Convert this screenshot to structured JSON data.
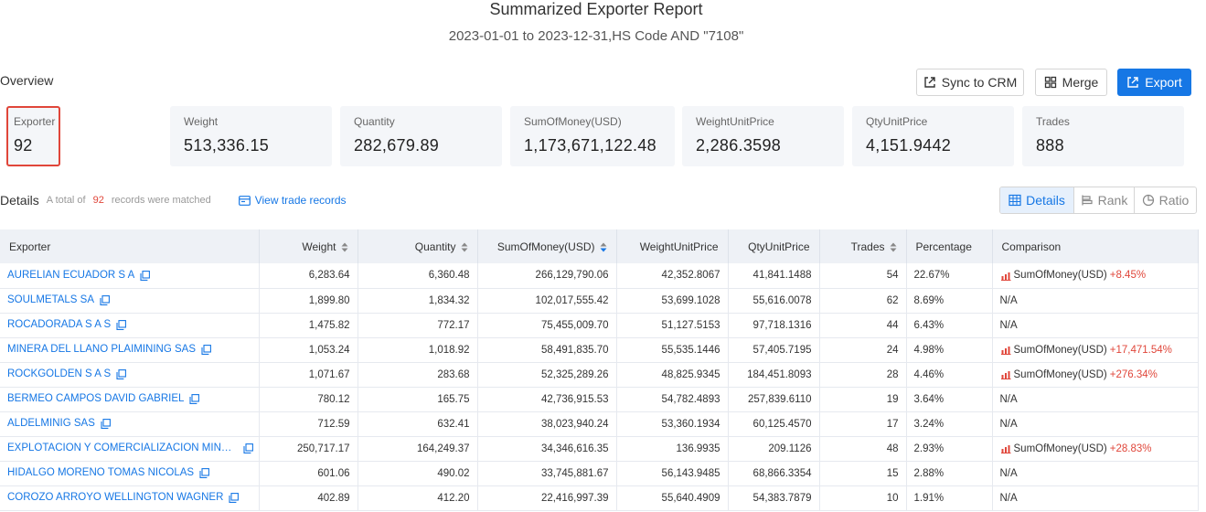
{
  "header": {
    "title": "Summarized Exporter Report",
    "subtitle": "2023-01-01 to 2023-12-31,HS Code AND \"7108\""
  },
  "overview": {
    "label": "Overview",
    "buttons": {
      "sync": "Sync to CRM",
      "merge": "Merge",
      "export": "Export"
    },
    "stats": [
      {
        "label": "Exporter",
        "value": "92"
      },
      {
        "label": "Weight",
        "value": "513,336.15"
      },
      {
        "label": "Quantity",
        "value": "282,679.89"
      },
      {
        "label": "SumOfMoney(USD)",
        "value": "1,173,671,122.48"
      },
      {
        "label": "WeightUnitPrice",
        "value": "2,286.3598"
      },
      {
        "label": "QtyUnitPrice",
        "value": "4,151.9442"
      },
      {
        "label": "Trades",
        "value": "888"
      }
    ]
  },
  "details": {
    "title": "Details",
    "note_prefix": "A total of",
    "count": "92",
    "note_suffix": "records were matched",
    "trade_link": "View trade records",
    "views": [
      "Details",
      "Rank",
      "Ratio"
    ],
    "active_view": "Details"
  },
  "table": {
    "columns": [
      "Exporter",
      "Weight",
      "Quantity",
      "SumOfMoney(USD)",
      "WeightUnitPrice",
      "QtyUnitPrice",
      "Trades",
      "Percentage",
      "Comparison"
    ],
    "sortable": [
      "Weight",
      "Quantity",
      "SumOfMoney(USD)",
      "Trades"
    ],
    "active_sort": "SumOfMoney(USD)",
    "rows": [
      {
        "exporter": "AURELIAN ECUADOR S A",
        "weight": "6,283.64",
        "quantity": "6,360.48",
        "money": "266,129,790.06",
        "wup": "42,352.8067",
        "qup": "41,841.1488",
        "trades": "54",
        "pct": "22.67%",
        "cmp_label": "SumOfMoney(USD)",
        "cmp_pct": "+8.45%"
      },
      {
        "exporter": "SOULMETALS SA",
        "weight": "1,899.80",
        "quantity": "1,834.32",
        "money": "102,017,555.42",
        "wup": "53,699.1028",
        "qup": "55,616.0078",
        "trades": "62",
        "pct": "8.69%",
        "cmp_label": "N/A",
        "cmp_pct": ""
      },
      {
        "exporter": "ROCADORADA S A S",
        "weight": "1,475.82",
        "quantity": "772.17",
        "money": "75,455,009.70",
        "wup": "51,127.5153",
        "qup": "97,718.1316",
        "trades": "44",
        "pct": "6.43%",
        "cmp_label": "N/A",
        "cmp_pct": ""
      },
      {
        "exporter": "MINERA DEL LLANO PLAIMINING SAS",
        "weight": "1,053.24",
        "quantity": "1,018.92",
        "money": "58,491,835.70",
        "wup": "55,535.1446",
        "qup": "57,405.7195",
        "trades": "24",
        "pct": "4.98%",
        "cmp_label": "SumOfMoney(USD)",
        "cmp_pct": "+17,471.54%"
      },
      {
        "exporter": "ROCKGOLDEN S A S",
        "weight": "1,071.67",
        "quantity": "283.68",
        "money": "52,325,289.26",
        "wup": "48,825.9345",
        "qup": "184,451.8093",
        "trades": "28",
        "pct": "4.46%",
        "cmp_label": "SumOfMoney(USD)",
        "cmp_pct": "+276.34%"
      },
      {
        "exporter": "BERMEO CAMPOS DAVID GABRIEL",
        "weight": "780.12",
        "quantity": "165.75",
        "money": "42,736,915.53",
        "wup": "54,782.4893",
        "qup": "257,839.6110",
        "trades": "19",
        "pct": "3.64%",
        "cmp_label": "N/A",
        "cmp_pct": ""
      },
      {
        "exporter": "ALDELMINIG SAS",
        "weight": "712.59",
        "quantity": "632.41",
        "money": "38,023,940.24",
        "wup": "53,360.1934",
        "qup": "60,125.4570",
        "trades": "17",
        "pct": "3.24%",
        "cmp_label": "N/A",
        "cmp_pct": ""
      },
      {
        "exporter": "EXPLOTACION Y COMERCIALIZACION MINEROS...",
        "weight": "250,717.17",
        "quantity": "164,249.37",
        "money": "34,346,616.35",
        "wup": "136.9935",
        "qup": "209.1126",
        "trades": "48",
        "pct": "2.93%",
        "cmp_label": "SumOfMoney(USD)",
        "cmp_pct": "+28.83%"
      },
      {
        "exporter": "HIDALGO MORENO TOMAS NICOLAS",
        "weight": "601.06",
        "quantity": "490.02",
        "money": "33,745,881.67",
        "wup": "56,143.9485",
        "qup": "68,866.3354",
        "trades": "15",
        "pct": "2.88%",
        "cmp_label": "N/A",
        "cmp_pct": ""
      },
      {
        "exporter": "COROZO ARROYO WELLINGTON WAGNER",
        "weight": "402.89",
        "quantity": "412.20",
        "money": "22,416,997.39",
        "wup": "55,640.4909",
        "qup": "54,383.7879",
        "trades": "10",
        "pct": "1.91%",
        "cmp_label": "N/A",
        "cmp_pct": ""
      }
    ]
  },
  "colors": {
    "accent": "#1677e5",
    "highlight": "#e0463a",
    "stat_bg": "#f4f6f9",
    "header_bg": "#eef1f6"
  }
}
